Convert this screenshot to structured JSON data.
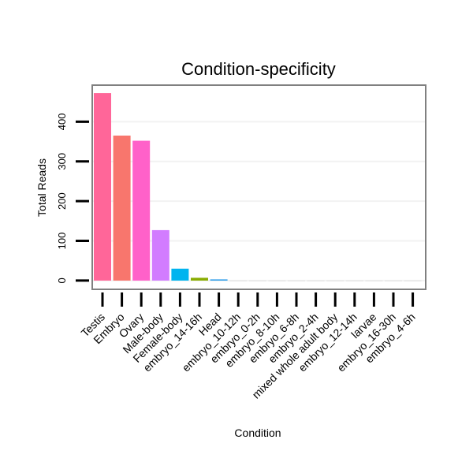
{
  "chart_data": {
    "type": "bar",
    "title": "Condition-specificity",
    "xlabel": "Condition",
    "ylabel": "Total Reads",
    "ylim": [
      -22,
      492
    ],
    "yticks": [
      0,
      100,
      200,
      300,
      400
    ],
    "grid": true,
    "categories": [
      "Testis",
      "Embryo",
      "Ovary",
      "Male-body",
      "Female-body",
      "embryo_14-16h",
      "Head",
      "embryo_10-12h",
      "embryo_0-2h",
      "embryo_8-10h",
      "embryo_6-8h",
      "embryo_2-4h",
      "mixed whole adult body",
      "embryo_12-14h",
      "larvae",
      "embryo_16-30h",
      "embryo_4-6h"
    ],
    "values": [
      472,
      365,
      352,
      127,
      30,
      7,
      3,
      0,
      0,
      0,
      0,
      0,
      0,
      0,
      0,
      0,
      0
    ],
    "colors": [
      "#FF6699",
      "#F8766D",
      "#FF61C9",
      "#D27CFF",
      "#00B4EF",
      "#89AC00",
      "#2A9BE8",
      "#CCCCCC",
      "#CCCCCC",
      "#CCCCCC",
      "#CCCCCC",
      "#CCCCCC",
      "#CCCCCC",
      "#CCCCCC",
      "#CCCCCC",
      "#CCCCCC",
      "#CCCCCC"
    ]
  }
}
